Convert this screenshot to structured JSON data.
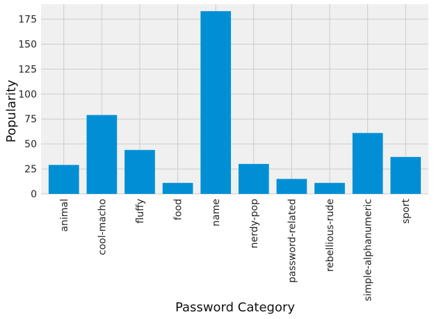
{
  "chart_data": {
    "type": "bar",
    "title": "",
    "xlabel": "Password Category",
    "ylabel": "Popularity",
    "categories": [
      "animal",
      "cool-macho",
      "fluffy",
      "food",
      "name",
      "nerdy-pop",
      "password-related",
      "rebellious-rude",
      "simple-alphanumeric",
      "sport"
    ],
    "values": [
      29,
      79,
      44,
      11,
      183,
      30,
      15,
      11,
      61,
      37
    ],
    "ylim": [
      0,
      190
    ],
    "yticks": [
      0,
      25,
      50,
      75,
      100,
      125,
      150,
      175
    ],
    "grid": true,
    "legend": "none",
    "colors": {
      "bar": "#008fd5",
      "plot_background": "#f0f0f0",
      "grid": "#cbcbcb"
    }
  }
}
